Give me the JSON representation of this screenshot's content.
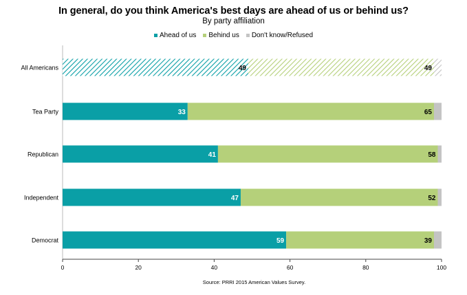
{
  "chart_data": {
    "type": "bar",
    "orientation": "horizontal",
    "stacked": true,
    "title": "In general, do you think America's best days are ahead of us or behind us?",
    "subtitle": "By party affiliation",
    "categories": [
      "All Americans",
      "Tea Party",
      "Republican",
      "Independent",
      "Democrat"
    ],
    "series": [
      {
        "name": "Ahead of us",
        "color": "#0a9fa6",
        "values": [
          49,
          33,
          41,
          47,
          59
        ]
      },
      {
        "name": "Behind us",
        "color": "#b5d07a",
        "values": [
          49,
          65,
          58,
          52,
          39
        ]
      },
      {
        "name": "Don't know/Refused",
        "color": "#c4c4c4",
        "values": [
          2,
          2,
          1,
          1,
          2
        ]
      }
    ],
    "hatched_categories": [
      "All Americans"
    ],
    "xlim": [
      0,
      100
    ],
    "xticks": [
      0,
      20,
      40,
      60,
      80,
      100
    ],
    "legend_position": "top",
    "grid": false,
    "source": "Source: PRRI 2015 American Values Survey."
  }
}
